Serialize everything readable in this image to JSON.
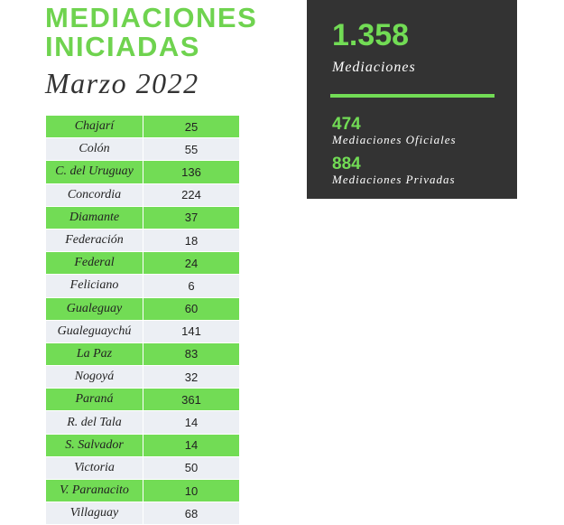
{
  "header": {
    "title_line1": "MEDIACIONES",
    "title_line2": "INICIADAS",
    "subtitle": "Marzo 2022"
  },
  "table": {
    "rows": [
      [
        "Chajarí",
        25
      ],
      [
        "Colón",
        55
      ],
      [
        "C. del Uruguay",
        136
      ],
      [
        "Concordia",
        224
      ],
      [
        "Diamante",
        37
      ],
      [
        "Federación",
        18
      ],
      [
        "Federal",
        24
      ],
      [
        "Feliciano",
        6
      ],
      [
        "Gualeguay",
        60
      ],
      [
        "Gualeguaychú",
        141
      ],
      [
        "La Paz",
        83
      ],
      [
        "Nogoyá",
        32
      ],
      [
        "Paraná",
        361
      ],
      [
        "R. del Tala",
        14
      ],
      [
        "S. Salvador",
        14
      ],
      [
        "Victoria",
        50
      ],
      [
        "V. Paranacito",
        10
      ],
      [
        "Villaguay",
        68
      ]
    ]
  },
  "summary": {
    "total": "1.358",
    "total_label": "Mediaciones",
    "official": 474,
    "official_label": "Mediaciones Oficiales",
    "private": 884,
    "private_label": "Mediaciones Privadas"
  }
}
